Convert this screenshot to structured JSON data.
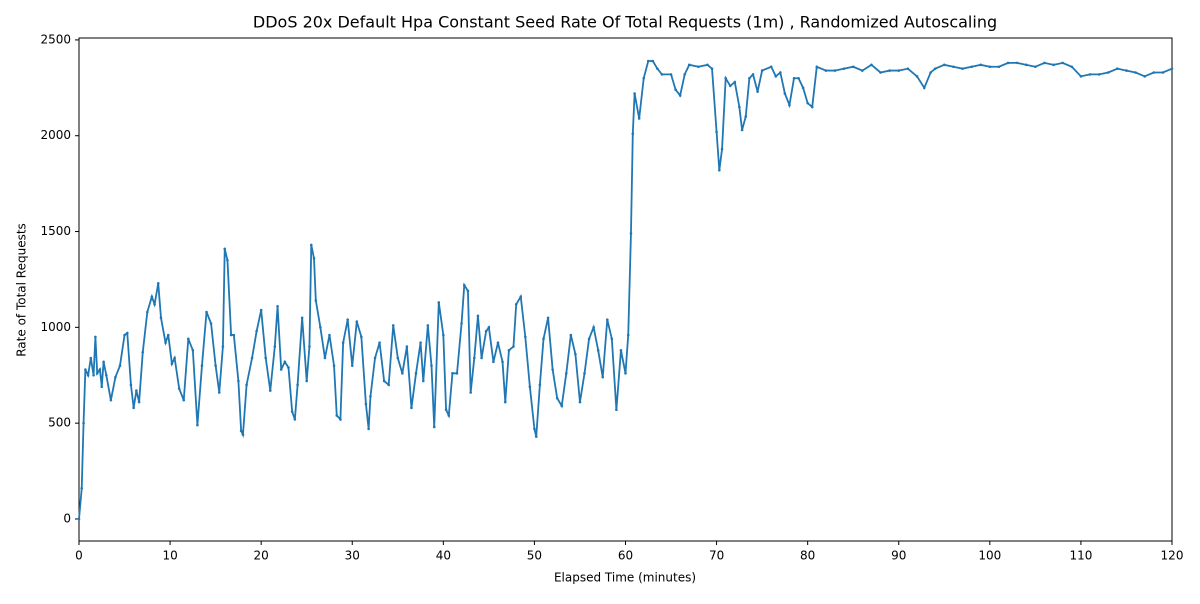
{
  "chart_data": {
    "type": "line",
    "title": "DDoS 20x Default Hpa Constant Seed Rate Of Total Requests (1m) , Randomized Autoscaling",
    "xlabel": "Elapsed Time (minutes)",
    "ylabel": "Rate of Total Requests",
    "xlim": [
      0,
      120
    ],
    "ylim": [
      -115,
      2510
    ],
    "xticks": [
      0,
      10,
      20,
      30,
      40,
      50,
      60,
      70,
      80,
      90,
      100,
      110,
      120
    ],
    "yticks": [
      0,
      500,
      1000,
      1500,
      2000,
      2500
    ],
    "x": [
      0,
      0.3,
      0.5,
      0.7,
      1,
      1.3,
      1.6,
      1.8,
      2,
      2.3,
      2.5,
      2.7,
      3,
      3.5,
      4,
      4.5,
      5,
      5.3,
      5.7,
      6,
      6.3,
      6.6,
      7,
      7.5,
      8,
      8.3,
      8.7,
      9,
      9.5,
      9.8,
      10.2,
      10.5,
      11,
      11.5,
      12,
      12.5,
      13,
      13.5,
      14,
      14.5,
      15,
      15.4,
      15.8,
      16,
      16.3,
      16.7,
      17,
      17.5,
      17.8,
      18,
      18.4,
      19,
      19.5,
      20,
      20.5,
      21,
      21.5,
      21.8,
      22.2,
      22.6,
      23,
      23.4,
      23.7,
      24,
      24.5,
      25,
      25.3,
      25.5,
      25.8,
      26,
      26.5,
      27,
      27.5,
      28,
      28.3,
      28.7,
      29,
      29.5,
      30,
      30.5,
      31,
      31.5,
      31.8,
      32,
      32.5,
      33,
      33.5,
      34,
      34.5,
      35,
      35.5,
      36,
      36.5,
      37,
      37.5,
      37.8,
      38.3,
      38.7,
      39,
      39.5,
      40,
      40.3,
      40.6,
      41,
      41.5,
      42,
      42.3,
      42.7,
      43,
      43.4,
      43.8,
      44.2,
      44.7,
      45,
      45.5,
      46,
      46.5,
      46.8,
      47.2,
      47.7,
      48,
      48.5,
      49,
      49.5,
      50,
      50.2,
      50.6,
      51,
      51.5,
      52,
      52.5,
      53,
      53.5,
      54,
      54.5,
      55,
      55.5,
      56,
      56.5,
      57,
      57.5,
      58,
      58.5,
      59,
      59.5,
      60,
      60.3,
      60.6,
      60.8,
      61,
      61.5,
      62,
      62.5,
      63,
      63.5,
      64,
      65,
      65.5,
      66,
      66.5,
      67,
      68,
      69,
      69.5,
      70,
      70.3,
      70.6,
      71,
      71.5,
      72,
      72.5,
      72.8,
      73.2,
      73.6,
      74,
      74.5,
      75,
      76,
      76.5,
      77,
      77.5,
      78,
      78.5,
      79,
      79.5,
      80,
      80.5,
      81,
      82,
      83,
      84,
      85,
      86,
      87,
      88,
      89,
      90,
      91,
      92,
      92.8,
      93.5,
      94,
      95,
      96,
      97,
      98,
      99,
      100,
      101,
      102,
      103,
      104,
      105,
      106,
      107,
      108,
      109,
      110,
      111,
      112,
      113,
      114,
      115,
      116,
      117,
      118,
      119,
      120
    ],
    "series": [
      {
        "color": "#1f77b4",
        "values": [
          0,
          160,
          500,
          780,
          750,
          840,
          750,
          950,
          760,
          780,
          690,
          820,
          750,
          620,
          740,
          800,
          960,
          970,
          700,
          580,
          670,
          610,
          870,
          1080,
          1160,
          1120,
          1230,
          1050,
          920,
          960,
          810,
          840,
          680,
          620,
          940,
          880,
          490,
          800,
          1080,
          1020,
          800,
          660,
          900,
          1410,
          1350,
          960,
          960,
          720,
          460,
          440,
          700,
          840,
          980,
          1090,
          840,
          670,
          900,
          1110,
          780,
          820,
          790,
          560,
          520,
          700,
          1050,
          720,
          900,
          1430,
          1360,
          1140,
          1000,
          840,
          960,
          800,
          540,
          520,
          920,
          1040,
          800,
          1030,
          950,
          600,
          470,
          640,
          840,
          920,
          720,
          700,
          1010,
          840,
          760,
          900,
          580,
          760,
          920,
          720,
          1010,
          800,
          480,
          1130,
          960,
          570,
          540,
          760,
          760,
          1020,
          1220,
          1190,
          660,
          840,
          1060,
          840,
          980,
          1000,
          820,
          920,
          820,
          610,
          880,
          900,
          1120,
          1160,
          950,
          690,
          470,
          430,
          700,
          940,
          1050,
          780,
          630,
          590,
          760,
          960,
          860,
          610,
          760,
          940,
          1000,
          880,
          740,
          1040,
          940,
          570,
          880,
          760,
          960,
          1490,
          2010,
          2220,
          2090,
          2300,
          2390,
          2390,
          2350,
          2320,
          2320,
          2240,
          2210,
          2320,
          2370,
          2360,
          2370,
          2350,
          2020,
          1820,
          1930,
          2300,
          2260,
          2280,
          2150,
          2030,
          2100,
          2300,
          2320,
          2230,
          2340,
          2360,
          2310,
          2330,
          2220,
          2160,
          2300,
          2300,
          2250,
          2170,
          2150,
          2360,
          2340,
          2340,
          2350,
          2360,
          2340,
          2370,
          2330,
          2340,
          2340,
          2350,
          2310,
          2250,
          2330,
          2350,
          2370,
          2360,
          2350,
          2360,
          2370,
          2360,
          2360,
          2380,
          2380,
          2370,
          2360,
          2380,
          2370,
          2380,
          2360,
          2310,
          2320,
          2320,
          2330,
          2350,
          2340,
          2330,
          2310,
          2330,
          2330,
          2350
        ]
      }
    ]
  }
}
